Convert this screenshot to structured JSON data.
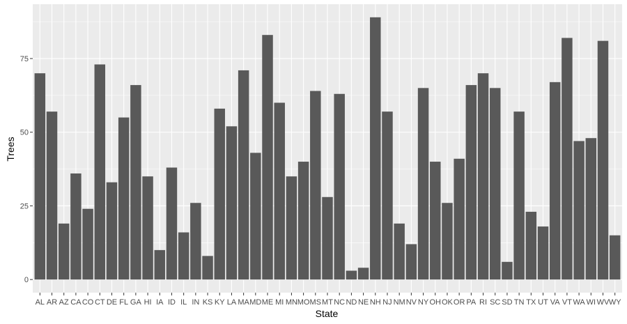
{
  "chart_data": {
    "type": "bar",
    "xlabel": "State",
    "ylabel": "Trees",
    "ylim": [
      -4.45,
      93.45
    ],
    "yticks": [
      0,
      25,
      50,
      75
    ],
    "grid": true,
    "colors": {
      "panel": "#EBEBEB",
      "bar": "#595959",
      "grid": "#FFFFFF"
    },
    "categories": [
      "AL",
      "AR",
      "AZ",
      "CA",
      "CO",
      "CT",
      "DE",
      "FL",
      "GA",
      "HI",
      "IA",
      "ID",
      "IL",
      "IN",
      "KS",
      "KY",
      "LA",
      "MA",
      "MD",
      "ME",
      "MI",
      "MN",
      "MO",
      "MS",
      "MT",
      "NC",
      "ND",
      "NE",
      "NH",
      "NJ",
      "NM",
      "NV",
      "NY",
      "OH",
      "OK",
      "OR",
      "PA",
      "RI",
      "SC",
      "SD",
      "TN",
      "TX",
      "UT",
      "VA",
      "VT",
      "WA",
      "WI",
      "WV",
      "WY"
    ],
    "values": [
      70,
      57,
      19,
      36,
      24,
      73,
      33,
      55,
      66,
      35,
      10,
      38,
      16,
      26,
      8,
      58,
      52,
      71,
      43,
      83,
      60,
      35,
      40,
      64,
      28,
      63,
      3,
      4,
      89,
      57,
      19,
      12,
      65,
      40,
      26,
      41,
      66,
      70,
      65,
      6,
      57,
      23,
      18,
      67,
      82,
      47,
      48,
      81,
      15
    ]
  }
}
